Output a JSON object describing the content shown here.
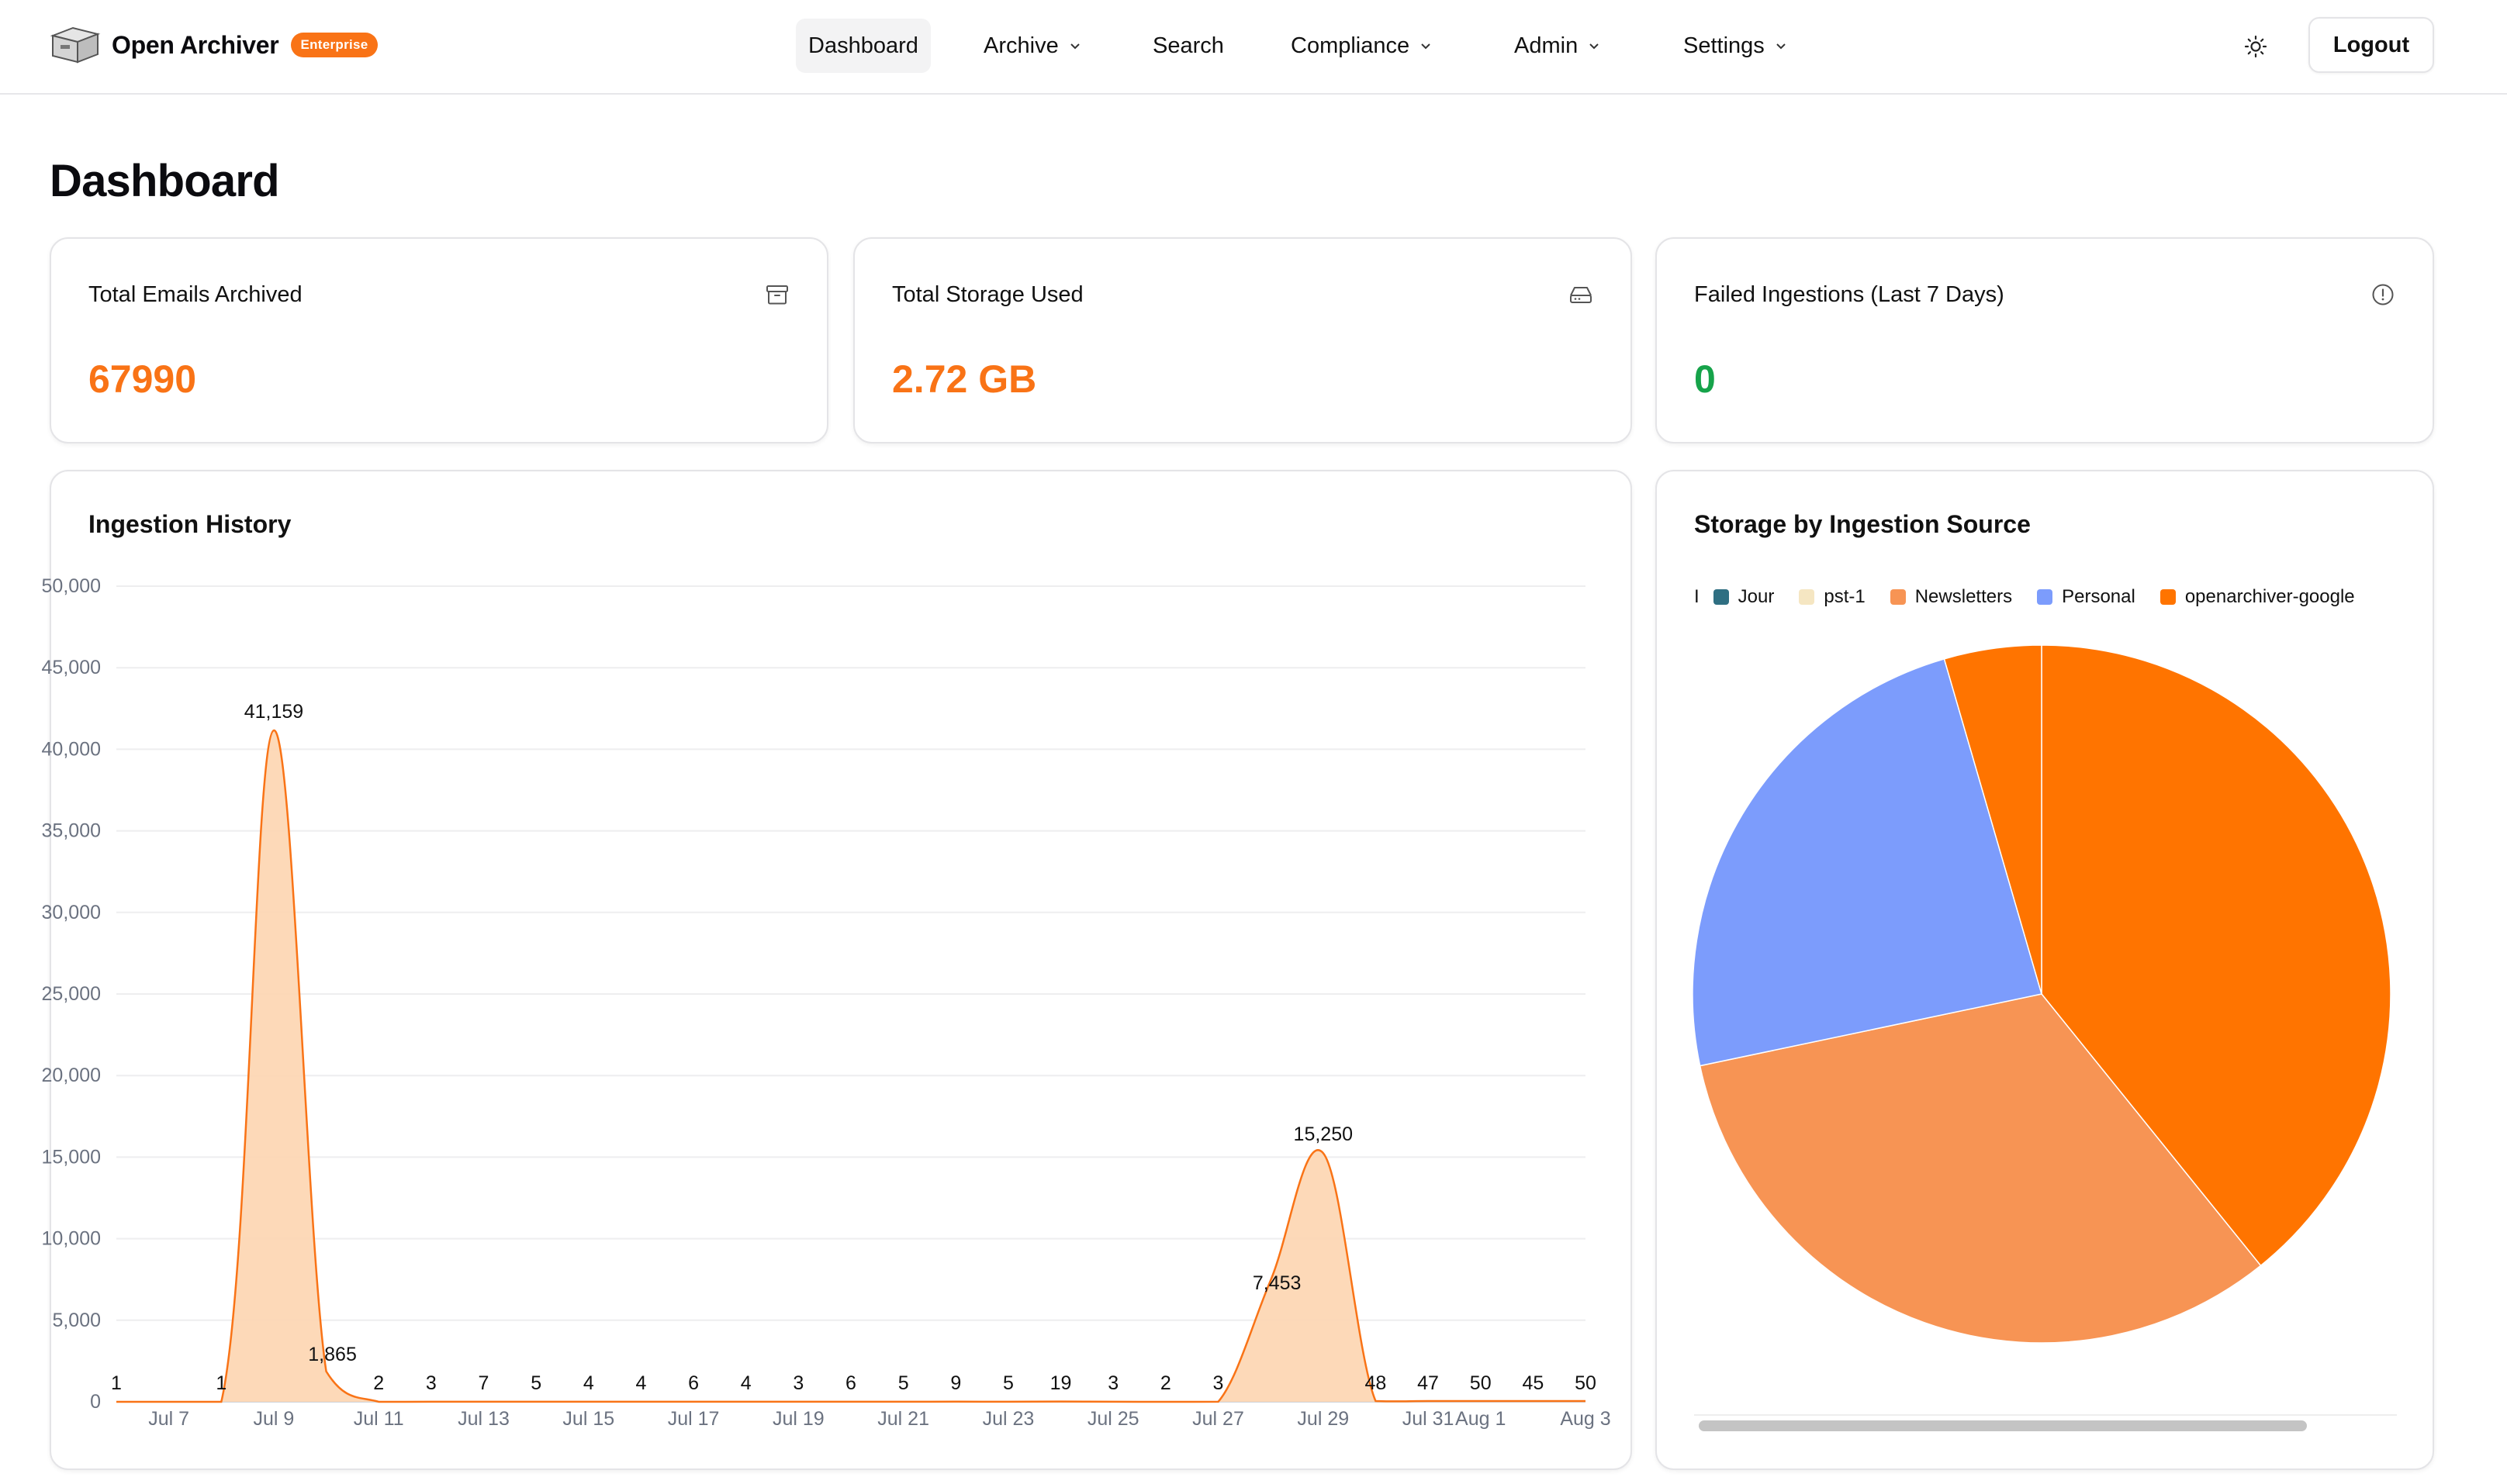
{
  "app": {
    "name": "Open Archiver",
    "badge": "Enterprise",
    "nav": [
      {
        "label": "Dashboard",
        "active": true,
        "dropdown": false
      },
      {
        "label": "Archive",
        "active": false,
        "dropdown": true
      },
      {
        "label": "Search",
        "active": false,
        "dropdown": false
      },
      {
        "label": "Compliance",
        "active": false,
        "dropdown": true
      },
      {
        "label": "Admin",
        "active": false,
        "dropdown": true
      },
      {
        "label": "Settings",
        "active": false,
        "dropdown": true
      }
    ],
    "theme_icon": "sun-icon",
    "logout_label": "Logout"
  },
  "page": {
    "title": "Dashboard"
  },
  "stats": [
    {
      "label": "Total Emails Archived",
      "value": "67990",
      "icon": "archive-box-icon",
      "color": "#f97316"
    },
    {
      "label": "Total Storage Used",
      "value": "2.72 GB",
      "icon": "hard-drive-icon",
      "color": "#f97316"
    },
    {
      "label": "Failed Ingestions (Last 7 Days)",
      "value": "0",
      "icon": "alert-circle-icon",
      "color": "#16a34a"
    }
  ],
  "history": {
    "title": "Ingestion History"
  },
  "storage": {
    "title": "Storage by Ingestion Source",
    "legend_truncated_first": "I",
    "legend": [
      {
        "label": "Jour",
        "color": "#2f6f82"
      },
      {
        "label": "pst-1",
        "color": "#f5e6c2"
      },
      {
        "label": "Newsletters",
        "color": "#f79454"
      },
      {
        "label": "Personal",
        "color": "#7c9cfc"
      },
      {
        "label": "openarchiver-google",
        "color": "#ff7400"
      }
    ]
  },
  "chart_data": [
    {
      "type": "area",
      "title": "Ingestion History",
      "xlabel": "",
      "ylabel": "",
      "ylim": [
        0,
        50000
      ],
      "y_ticks": [
        0,
        5000,
        10000,
        15000,
        20000,
        25000,
        30000,
        35000,
        40000,
        45000,
        50000
      ],
      "y_tick_labels": [
        "0",
        "5,000",
        "10,000",
        "15,000",
        "20,000",
        "25,000",
        "30,000",
        "35,000",
        "40,000",
        "45,000",
        "50,000"
      ],
      "x_tick_labels": [
        "Jul 7",
        "Jul 9",
        "Jul 11",
        "Jul 13",
        "Jul 15",
        "Jul 17",
        "Jul 19",
        "Jul 21",
        "Jul 23",
        "Jul 25",
        "Jul 27",
        "Jul 29",
        "Jul 31",
        "Aug 1",
        "Aug 3"
      ],
      "points": [
        {
          "x": "Jul 6",
          "y": 1
        },
        {
          "x": "Jul 8",
          "y": 1
        },
        {
          "x": "Jul 9",
          "y": 41159
        },
        {
          "x": "Jul 10",
          "y": 1865
        },
        {
          "x": "Jul 11",
          "y": 2
        },
        {
          "x": "Jul 12",
          "y": 3
        },
        {
          "x": "Jul 13",
          "y": 7
        },
        {
          "x": "Jul 14",
          "y": 5
        },
        {
          "x": "Jul 15",
          "y": 4
        },
        {
          "x": "Jul 16",
          "y": 4
        },
        {
          "x": "Jul 17",
          "y": 6
        },
        {
          "x": "Jul 18",
          "y": 4
        },
        {
          "x": "Jul 19",
          "y": 3
        },
        {
          "x": "Jul 20",
          "y": 6
        },
        {
          "x": "Jul 21",
          "y": 5
        },
        {
          "x": "Jul 22",
          "y": 9
        },
        {
          "x": "Jul 23",
          "y": 5
        },
        {
          "x": "Jul 24",
          "y": 19
        },
        {
          "x": "Jul 25",
          "y": 3
        },
        {
          "x": "Jul 26",
          "y": 2
        },
        {
          "x": "Jul 27",
          "y": 3
        },
        {
          "x": "Jul 28",
          "y": 7453
        },
        {
          "x": "Jul 29",
          "y": 15250
        },
        {
          "x": "Jul 30",
          "y": 48
        },
        {
          "x": "Jul 31",
          "y": 47
        },
        {
          "x": "Aug 1",
          "y": 50
        },
        {
          "x": "Aug 2",
          "y": 45
        },
        {
          "x": "Aug 3",
          "y": 50
        }
      ],
      "grid": true,
      "color": "#f97316",
      "fill": "#fdd5b0"
    },
    {
      "type": "pie",
      "title": "Storage by Ingestion Source",
      "slices": [
        {
          "label": "openarchiver-google",
          "value": 39.2,
          "color": "#ff7400"
        },
        {
          "label": "Newsletters",
          "value": 32.5,
          "color": "#f79454"
        },
        {
          "label": "Personal",
          "value": 23.8,
          "color": "#7c9cfc"
        },
        {
          "label": "unlabeled",
          "value": 4.5,
          "color": "#ff7400"
        }
      ]
    }
  ]
}
